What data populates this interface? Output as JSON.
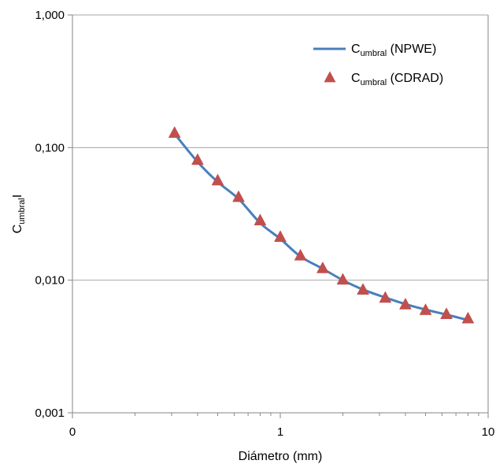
{
  "chart_data": {
    "type": "line",
    "x_scale": "log",
    "y_scale": "log",
    "xlim": [
      0.1,
      10
    ],
    "ylim": [
      0.001,
      1
    ],
    "grid": "horizontal-major",
    "legend_position": "top-right",
    "x_tick_labels": [
      "0",
      "1",
      "10"
    ],
    "y_tick_labels": [
      "0,001",
      "0,010",
      "0,100",
      "1,000"
    ],
    "xlabel": "Diámetro (mm)",
    "ylabel": {
      "main": "C",
      "sub": "umbral",
      "suffix": "I"
    },
    "series": [
      {
        "name": {
          "main": "C",
          "sub": "umbral",
          "suffix": " (NPWE)"
        },
        "kind": "line",
        "color": "#4A7EBB",
        "x": [
          0.31,
          0.4,
          0.5,
          0.63,
          0.8,
          1.0,
          1.25,
          1.6,
          2.0,
          2.5,
          3.2,
          4.0,
          5.0,
          6.3,
          8.0
        ],
        "y": [
          0.127,
          0.078,
          0.055,
          0.041,
          0.027,
          0.0205,
          0.0151,
          0.0122,
          0.01,
          0.0085,
          0.0074,
          0.0066,
          0.006,
          0.0055,
          0.005
        ]
      },
      {
        "name": {
          "main": "C",
          "sub": "umbral",
          "suffix": " (CDRAD)"
        },
        "kind": "marker-triangle",
        "color": "#C0504D",
        "x": [
          0.31,
          0.4,
          0.5,
          0.63,
          0.8,
          1.0,
          1.25,
          1.6,
          2.0,
          2.5,
          3.2,
          4.0,
          5.0,
          6.3,
          8.0
        ],
        "y": [
          0.128,
          0.08,
          0.056,
          0.042,
          0.028,
          0.021,
          0.0152,
          0.0122,
          0.01,
          0.0084,
          0.0073,
          0.0065,
          0.0059,
          0.0055,
          0.0051
        ]
      }
    ]
  }
}
